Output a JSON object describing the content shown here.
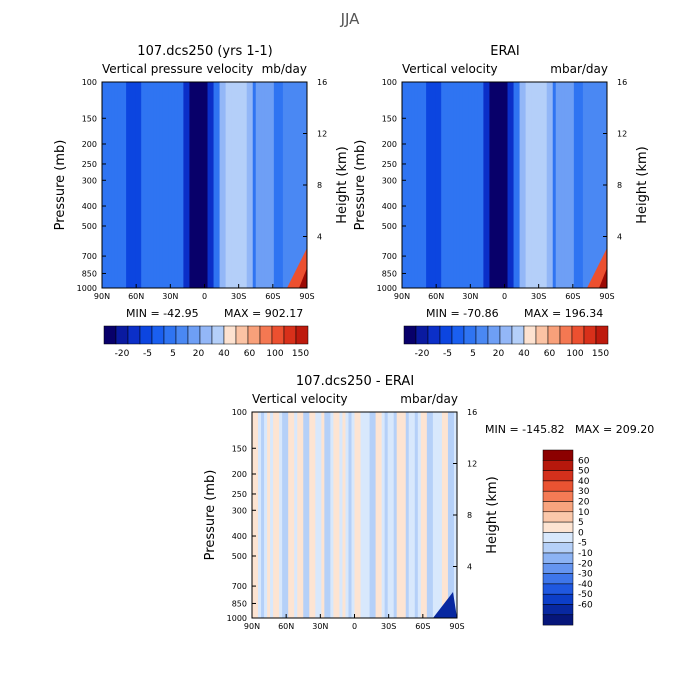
{
  "figure_title": "JJA",
  "colors": {
    "blues": [
      "#08006a",
      "#0a1aa0",
      "#0b2fc8",
      "#0c45e0",
      "#1a5ff0",
      "#2f74f2",
      "#4a88f3",
      "#6e9ff5",
      "#93b7f7",
      "#b4cff9",
      "#d4e5fb"
    ],
    "reds": [
      "#fde2d0",
      "#fbc3a4",
      "#f8a07a",
      "#f47852",
      "#ec5030",
      "#d8301a",
      "#be1a0d",
      "#9b0a05",
      "#6e0000"
    ],
    "diff_blues": [
      "#d8e8fc",
      "#b5d0f8",
      "#8cb3f4",
      "#6595f0",
      "#3e76ea",
      "#1f58e0",
      "#0c3ec8",
      "#0828a0",
      "#06167a"
    ],
    "diff_reds": [
      "#fde4d2",
      "#fbc8aa",
      "#f8a47e",
      "#f47b55",
      "#ea5332",
      "#d3301c",
      "#b6180c",
      "#8c0000"
    ]
  },
  "chart_data": [
    {
      "type": "heatmap",
      "title": "107.dcs250 (yrs 1-1)",
      "subtitle_left": "Vertical pressure velocity",
      "subtitle_right": "mb/day",
      "ylabel": "Pressure (mb)",
      "ylabel_right": "Height (km)",
      "x_tick_labels": [
        "90N",
        "60N",
        "30N",
        "0",
        "30S",
        "60S",
        "90S"
      ],
      "x_values": [
        90,
        60,
        30,
        0,
        -30,
        -60,
        -90
      ],
      "xlim": [
        90,
        -90
      ],
      "y_tick_labels": [
        "100",
        "150",
        "200",
        "250",
        "300",
        "400",
        "500",
        "700",
        "850",
        "1000"
      ],
      "y_values": [
        100,
        150,
        200,
        250,
        300,
        400,
        500,
        700,
        850,
        1000
      ],
      "ylim": [
        100,
        1000
      ],
      "y_scale": "log",
      "right_tick_labels": [
        "16",
        "12",
        "8",
        "4"
      ],
      "right_values": [
        16,
        12,
        8,
        4
      ],
      "min_text": "MIN = -42.95",
      "max_text": "MAX = 902.17",
      "colorbar_labels": [
        "-20",
        "-5",
        "5",
        "20",
        "40",
        "60",
        "100",
        "150"
      ],
      "colorbar_orientation": "horizontal"
    },
    {
      "type": "heatmap",
      "title": "ERAI",
      "subtitle_left": "Vertical velocity",
      "subtitle_right": "mbar/day",
      "ylabel": "Pressure (mb)",
      "ylabel_right": "Height (km)",
      "x_tick_labels": [
        "90N",
        "60N",
        "30N",
        "0",
        "30S",
        "60S",
        "90S"
      ],
      "x_values": [
        90,
        60,
        30,
        0,
        -30,
        -60,
        -90
      ],
      "xlim": [
        90,
        -90
      ],
      "y_tick_labels": [
        "100",
        "150",
        "200",
        "250",
        "300",
        "400",
        "500",
        "700",
        "850",
        "1000"
      ],
      "y_values": [
        100,
        150,
        200,
        250,
        300,
        400,
        500,
        700,
        850,
        1000
      ],
      "ylim": [
        100,
        1000
      ],
      "y_scale": "log",
      "right_tick_labels": [
        "16",
        "12",
        "8",
        "4"
      ],
      "right_values": [
        16,
        12,
        8,
        4
      ],
      "min_text": "MIN = -70.86",
      "max_text": "MAX = 196.34",
      "colorbar_labels": [
        "-20",
        "-5",
        "5",
        "20",
        "40",
        "60",
        "100",
        "150"
      ],
      "colorbar_orientation": "horizontal"
    },
    {
      "type": "heatmap",
      "title": "107.dcs250 - ERAI",
      "subtitle_left": "Vertical velocity",
      "subtitle_right": "mbar/day",
      "ylabel": "Pressure (mb)",
      "ylabel_right": "Height (km)",
      "x_tick_labels": [
        "90N",
        "60N",
        "30N",
        "0",
        "30S",
        "60S",
        "90S"
      ],
      "x_values": [
        90,
        60,
        30,
        0,
        -30,
        -60,
        -90
      ],
      "xlim": [
        90,
        -90
      ],
      "y_tick_labels": [
        "100",
        "150",
        "200",
        "250",
        "300",
        "400",
        "500",
        "700",
        "850",
        "1000"
      ],
      "y_values": [
        100,
        150,
        200,
        250,
        300,
        400,
        500,
        700,
        850,
        1000
      ],
      "ylim": [
        100,
        1000
      ],
      "y_scale": "log",
      "right_tick_labels": [
        "16",
        "12",
        "8",
        "4"
      ],
      "right_values": [
        16,
        12,
        8,
        4
      ],
      "min_text": "MIN = -145.82",
      "max_text": "MAX = 209.20",
      "colorbar_labels": [
        "60",
        "50",
        "40",
        "30",
        "20",
        "10",
        "5",
        "0",
        "-5",
        "-10",
        "-20",
        "-30",
        "-40",
        "-50",
        "-60"
      ],
      "colorbar_orientation": "vertical"
    }
  ]
}
